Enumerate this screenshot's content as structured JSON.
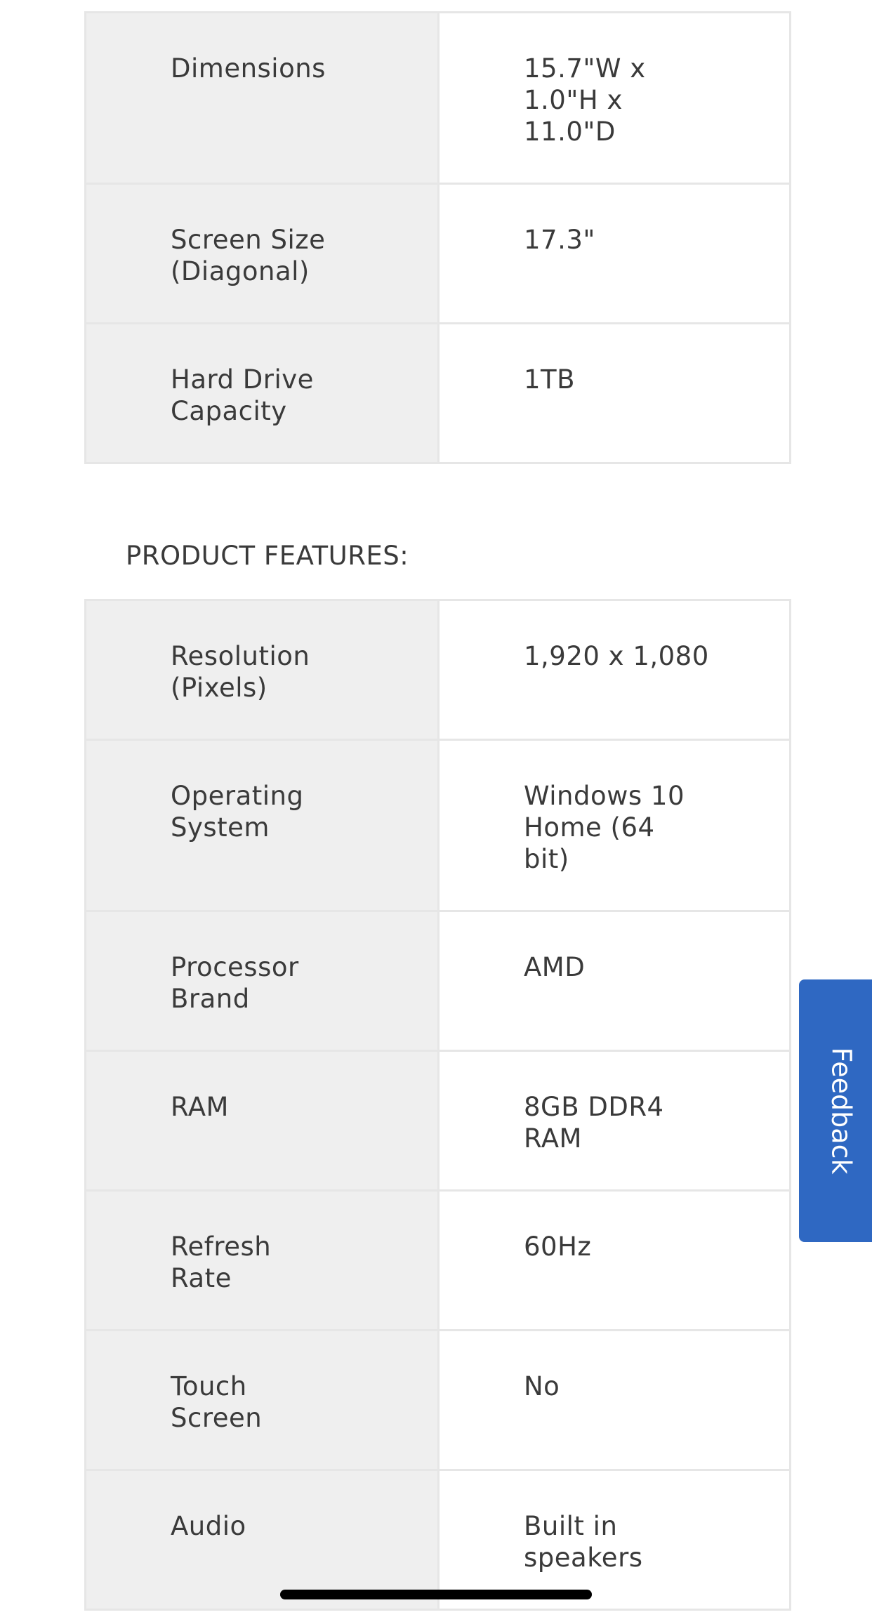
{
  "specs": [
    {
      "label": "Dimensions",
      "value": "15.7\"W x\n1.0\"H x\n11.0\"D"
    },
    {
      "label": "Screen Size\n(Diagonal)",
      "value": "17.3\""
    },
    {
      "label": "Hard Drive\nCapacity",
      "value": "1TB"
    }
  ],
  "features_heading": "PRODUCT FEATURES:",
  "features": [
    {
      "label": "Resolution\n(Pixels)",
      "value": "1,920 x 1,080"
    },
    {
      "label": "Operating\nSystem",
      "value": "Windows 10\nHome (64\nbit)"
    },
    {
      "label": "Processor\nBrand",
      "value": "AMD"
    },
    {
      "label": "RAM",
      "value": "8GB DDR4\nRAM"
    },
    {
      "label": "Refresh\nRate",
      "value": "60Hz"
    },
    {
      "label": "Touch\nScreen",
      "value": "No"
    },
    {
      "label": "Audio",
      "value": "Built in\nspeakers"
    }
  ],
  "feedback": {
    "label": "Feedback",
    "color": "#2f68c2"
  }
}
